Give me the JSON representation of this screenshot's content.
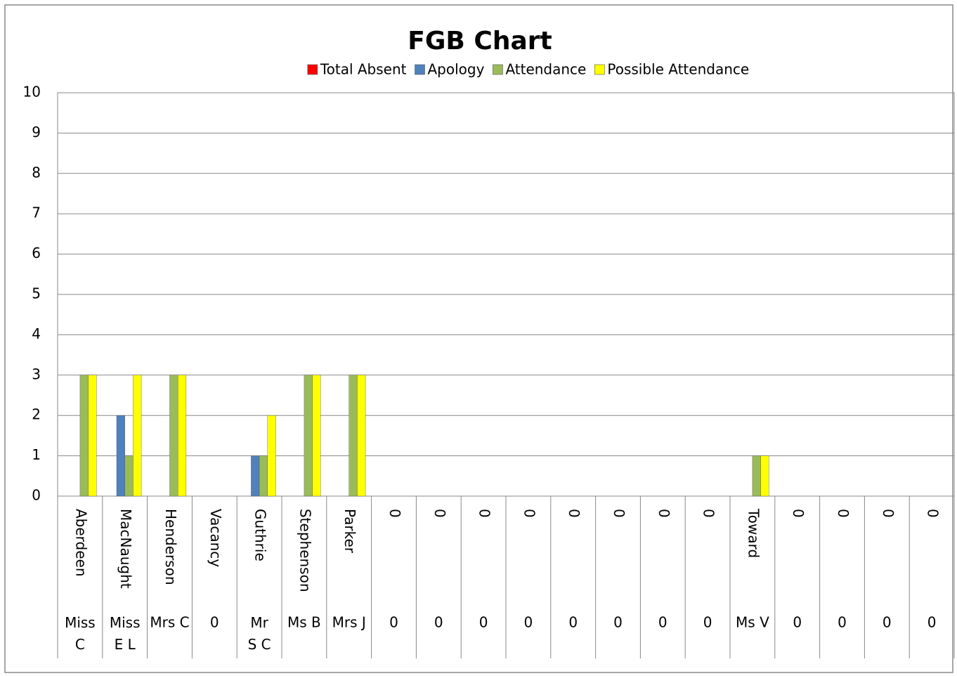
{
  "chart_data": {
    "type": "bar",
    "title": "FGB Chart",
    "categories": [
      "Aberdeen",
      "MacNaught",
      "Henderson",
      "Vacancy",
      "Guthrie",
      "Stephenson",
      "Parker",
      "0",
      "0",
      "0",
      "0",
      "0",
      "0",
      "0",
      "0",
      "Toward",
      "0",
      "0",
      "0",
      "0"
    ],
    "outer_categories": [
      "Miss C",
      "Miss E L",
      "Mrs C",
      "0",
      "Mr S C",
      "Ms B",
      "Mrs J",
      "0",
      "0",
      "0",
      "0",
      "0",
      "0",
      "0",
      "0",
      "Ms V",
      "0",
      "0",
      "0",
      "0"
    ],
    "series": [
      {
        "name": "Total Absent",
        "color": "#ff0000",
        "values": [
          0,
          0,
          0,
          0,
          0,
          0,
          0,
          0,
          0,
          0,
          0,
          0,
          0,
          0,
          0,
          0,
          0,
          0,
          0,
          0
        ]
      },
      {
        "name": "Apology",
        "color": "#4f81bd",
        "values": [
          0,
          2,
          0,
          0,
          1,
          0,
          0,
          0,
          0,
          0,
          0,
          0,
          0,
          0,
          0,
          0,
          0,
          0,
          0,
          0
        ]
      },
      {
        "name": "Attendance",
        "color": "#9bbb59",
        "values": [
          3,
          1,
          3,
          0,
          1,
          3,
          3,
          0,
          0,
          0,
          0,
          0,
          0,
          0,
          0,
          1,
          0,
          0,
          0,
          0
        ]
      },
      {
        "name": "Possible Attendance",
        "color": "#ffff00",
        "values": [
          3,
          3,
          3,
          0,
          2,
          3,
          3,
          0,
          0,
          0,
          0,
          0,
          0,
          0,
          0,
          1,
          0,
          0,
          0,
          0
        ]
      }
    ],
    "ylim": [
      0,
      10
    ],
    "yticks": [
      0,
      1,
      2,
      3,
      4,
      5,
      6,
      7,
      8,
      9,
      10
    ],
    "grid": true,
    "legend": "top"
  }
}
